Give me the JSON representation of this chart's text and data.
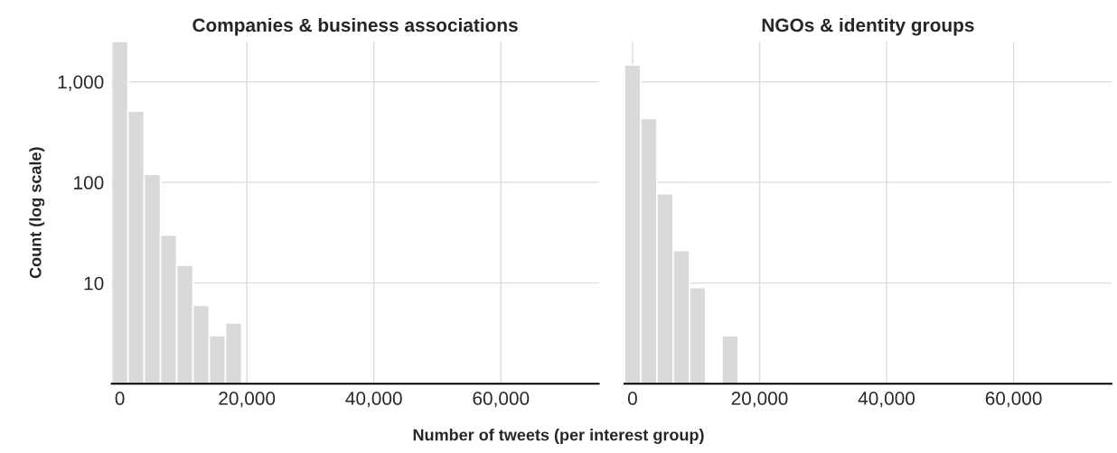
{
  "chart_data": [
    {
      "type": "histogram",
      "title": "Companies & business associations",
      "xlabel": "Number of tweets (per interest group)",
      "ylabel": "Count (log scale)",
      "bins": [
        -1280,
        1280,
        3840,
        6400,
        8960,
        11520,
        14080,
        16640,
        19200
      ],
      "values": [
        2500,
        510,
        120,
        30,
        15,
        6,
        3,
        4
      ],
      "color": "#d9d9d9",
      "log": true,
      "xlim": [
        -1280,
        75400
      ],
      "xticks": [
        {
          "value": 0,
          "label": "0"
        },
        {
          "value": 20000,
          "label": "20,000"
        },
        {
          "value": 40000,
          "label": "40,000"
        },
        {
          "value": 60000,
          "label": "60,000"
        }
      ],
      "ylim": [
        1,
        2500
      ],
      "yticks": [
        {
          "value": 10,
          "label": "10"
        },
        {
          "value": 100,
          "label": "100"
        },
        {
          "value": 1000,
          "label": "1,000"
        }
      ],
      "grid": true
    },
    {
      "type": "histogram",
      "title": "NGOs & identity groups",
      "bins": [
        -1280,
        1280,
        3840,
        6400,
        8960,
        11520,
        14080,
        16640
      ],
      "values": [
        1470,
        430,
        77,
        21,
        9,
        null,
        3
      ],
      "color": "#d9d9d9",
      "log": true,
      "xlim": [
        -1280,
        75400
      ],
      "xticks": [
        {
          "value": 0,
          "label": "0"
        },
        {
          "value": 20000,
          "label": "20,000"
        },
        {
          "value": 40000,
          "label": "40,000"
        },
        {
          "value": 60000,
          "label": "60,000"
        }
      ],
      "ylim": [
        1,
        2500
      ],
      "yticks": [
        {
          "value": 10,
          "label": null
        },
        {
          "value": 100,
          "label": null
        },
        {
          "value": 1000,
          "label": null
        }
      ],
      "grid": true,
      "tick_labels": "x"
    }
  ]
}
